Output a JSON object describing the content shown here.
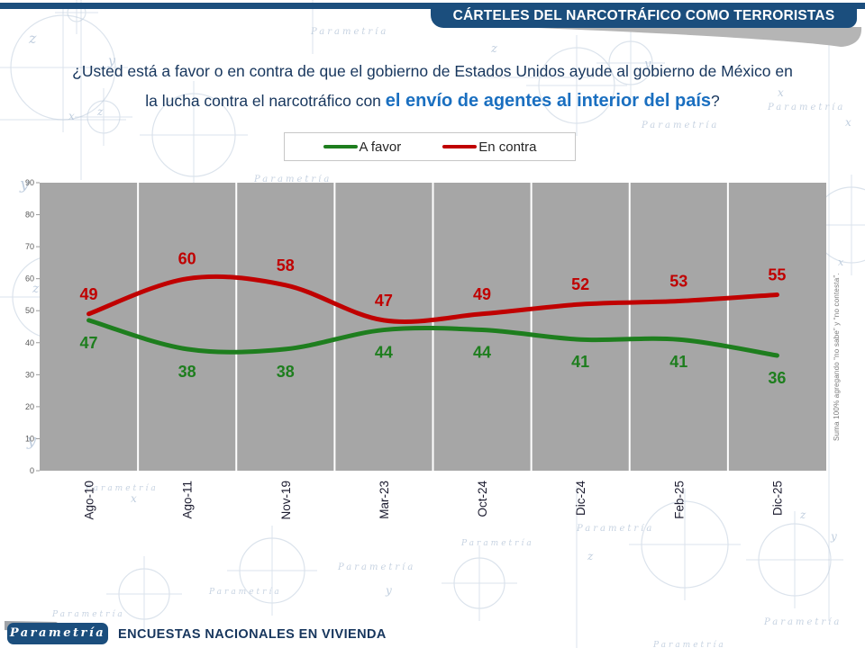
{
  "header": {
    "title": "CÁRTELES DEL NARCOTRÁFICO COMO TERRORISTAS"
  },
  "question": {
    "line1": "¿Usted está a favor o en contra de que el gobierno de Estados Unidos ayude al gobierno de México en",
    "line2_prefix": "la lucha contra el narcotráfico con ",
    "line2_highlight": "el envío de agentes al interior del país",
    "line2_suffix": "?"
  },
  "legend": {
    "items": [
      {
        "label": "A favor",
        "color": "#1E7E1E"
      },
      {
        "label": "En contra",
        "color": "#C00000"
      }
    ]
  },
  "chart_data": {
    "type": "line",
    "title": "",
    "categories": [
      "Ago-10",
      "Ago-11",
      "Nov-19",
      "Mar-23",
      "Oct-24",
      "Dic-24",
      "Feb-25",
      "Dic-25"
    ],
    "series": [
      {
        "name": "A favor",
        "color": "#1E7E1E",
        "values": [
          47,
          38,
          38,
          44,
          44,
          41,
          41,
          36
        ],
        "label_side": "below"
      },
      {
        "name": "En contra",
        "color": "#C00000",
        "values": [
          49,
          60,
          58,
          47,
          49,
          52,
          53,
          55
        ],
        "label_side": "above"
      }
    ],
    "ylim": [
      0,
      90
    ],
    "ytick_step": 10,
    "plot_bg": "#A6A6A6",
    "grid": "vertical-white-lines",
    "legend_position": "top-center",
    "xlabel": "",
    "ylabel": ""
  },
  "side_note": "Suma 100% agregando “no sabe” y “no contesta”.",
  "footer": {
    "logo": "Parametría",
    "text": "ENCUESTAS NACIONALES EN VIVIENDA"
  },
  "watermark_text": "Parametría"
}
